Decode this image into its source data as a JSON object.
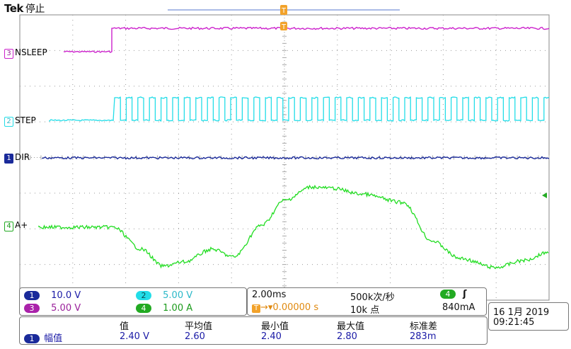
{
  "header": {
    "brand": "Tek",
    "state": "停止"
  },
  "trigger_icon": "trigger-position-icon",
  "channels": [
    {
      "id": "3",
      "label": "NSLEEP",
      "color": "#cc22cc"
    },
    {
      "id": "2",
      "label": "STEP",
      "color": "#22dde8"
    },
    {
      "id": "1",
      "label": "DIR",
      "color": "#1a2a9a"
    },
    {
      "id": "4",
      "label": "A+",
      "color": "#22dd22"
    }
  ],
  "scales": {
    "ch1": {
      "num": "1",
      "value": "10.0 V"
    },
    "ch2": {
      "num": "2",
      "value": "5.00 V"
    },
    "ch3": {
      "num": "3",
      "value": "5.00 V"
    },
    "ch4": {
      "num": "4",
      "value": "1.00 A"
    }
  },
  "timebase": {
    "time_per_div": "2.00ms",
    "sample_rate": "500k次/秒",
    "trigger_offset": "0.00000 s",
    "record_length": "10k 点",
    "trigger_channel": "4",
    "trigger_level": "840mA"
  },
  "datetime": {
    "date": "16 1月  2019",
    "time": "09:21:45"
  },
  "measurement": {
    "channel": "1",
    "name": "幅值",
    "headers": [
      "值",
      "平均值",
      "最小值",
      "最大值",
      "标准差"
    ],
    "values": [
      "2.40 V",
      "2.60",
      "2.40",
      "2.80",
      "283m"
    ]
  },
  "colors": {
    "ch1": "#1a2a9a",
    "ch2": "#22dde8",
    "ch3": "#cc22cc",
    "ch4": "#22dd22",
    "trigger": "#f2a22a",
    "grid": "#888888"
  }
}
